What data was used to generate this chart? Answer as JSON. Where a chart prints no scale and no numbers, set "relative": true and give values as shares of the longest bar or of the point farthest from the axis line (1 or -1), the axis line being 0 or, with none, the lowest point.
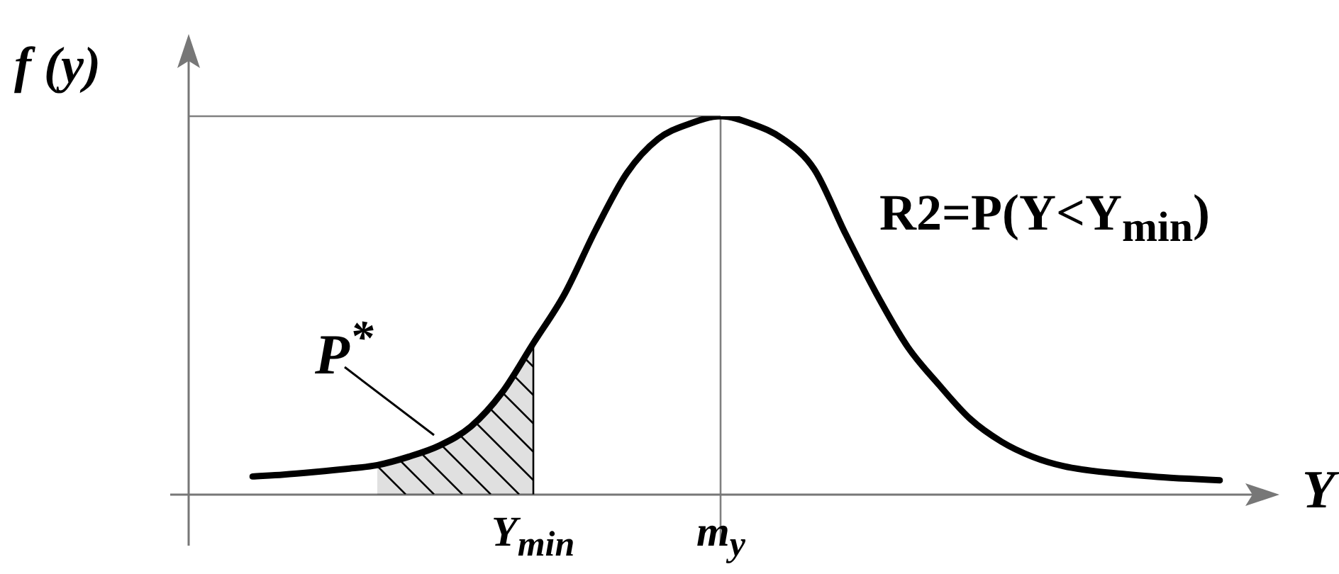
{
  "chart_data": {
    "type": "line",
    "relative": true,
    "ylabel": "f (y)",
    "xlabel": "Y",
    "legend": false,
    "marker": "none",
    "categories": [
      null,
      null,
      null,
      null,
      null,
      null,
      null,
      null,
      null,
      "Y$_{min}$",
      null,
      null,
      null,
      null,
      null,
      "m$_{y}$",
      null,
      null,
      null,
      null,
      null,
      null,
      null,
      null,
      null,
      null,
      null,
      null,
      null,
      null,
      null,
      null
    ],
    "series": [
      {
        "color": "#000000",
        "values": [
          0.048,
          0.053,
          0.06,
          0.068,
          0.078,
          0.1,
          0.13,
          0.18,
          0.27,
          0.4,
          0.53,
          0.7,
          0.85,
          0.94,
          0.98,
          1,
          0.98,
          0.94,
          0.86,
          0.69,
          0.53,
          0.39,
          0.29,
          0.2,
          0.14,
          0.1,
          0.075,
          0.062,
          0.054,
          0.047,
          0.042,
          0.038
        ]
      },
      {
        "type": "area",
        "color": "#000000",
        "values": [
          null,
          null,
          null,
          null,
          0.078,
          0.1,
          0.13,
          0.18,
          0.27,
          0.4,
          null,
          null,
          null,
          null,
          null,
          null,
          null,
          null,
          null,
          null,
          null,
          null,
          null,
          null,
          null,
          null,
          null,
          null,
          null,
          null,
          null,
          null
        ]
      }
    ],
    "ref_lines": [
      {
        "axis": "x",
        "value": "m$_{y}$",
        "color": "#808080"
      },
      {
        "axis": "y",
        "value": 1,
        "color": "#808080"
      }
    ],
    "annotations": [
      "R2=P(Y<Y$_{min}$)",
      "P$^{*}$"
    ]
  }
}
